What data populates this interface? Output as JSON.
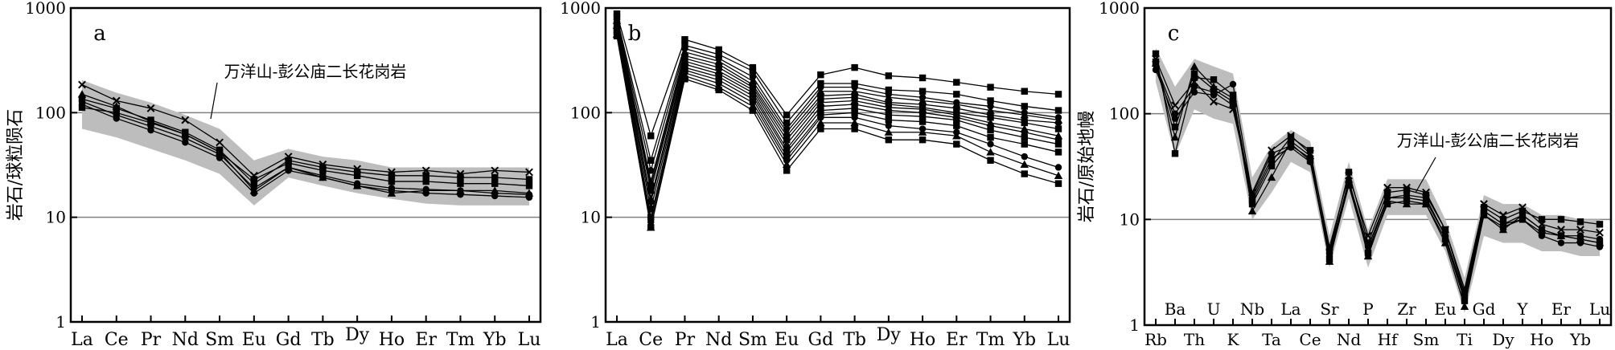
{
  "chart_data": [
    {
      "type": "line",
      "panel_label": "a",
      "ylabel": "岩石/球粒陨石",
      "yscale": "log",
      "ylim": [
        1,
        1000
      ],
      "yticks": [
        "1",
        "10",
        "100",
        "1000"
      ],
      "grid": "horizontal",
      "categories": [
        "La",
        "Ce",
        "Pr",
        "Nd",
        "Sm",
        "Eu",
        "Gd",
        "Tb",
        "Dy",
        "Ho",
        "Er",
        "Tm",
        "Yb",
        "Lu"
      ],
      "annotation": "万洋山-彭公庙二长花岗岩",
      "shaded_range": {
        "lower": [
          70,
          58,
          45,
          35,
          26,
          13,
          24,
          20,
          17,
          15,
          13.5,
          13,
          13,
          13
        ],
        "upper": [
          205,
          155,
          125,
          95,
          70,
          35,
          45,
          38,
          35,
          30,
          30,
          30,
          30,
          30
        ]
      },
      "series": [
        {
          "marker": "circle",
          "values": [
            120,
            88,
            68,
            52,
            37,
            17,
            28,
            24,
            20,
            18,
            17,
            16.5,
            16,
            15.5
          ]
        },
        {
          "marker": "circle",
          "values": [
            128,
            95,
            74,
            57,
            40,
            19,
            30,
            25,
            21,
            19,
            18.5,
            18,
            17,
            16.5
          ]
        },
        {
          "marker": "square",
          "values": [
            135,
            110,
            85,
            65,
            44,
            21,
            35,
            30,
            27,
            25,
            25,
            24,
            24,
            23
          ]
        },
        {
          "marker": "triangle",
          "values": [
            150,
            115,
            82,
            62,
            42,
            18,
            30,
            24,
            20,
            17,
            18,
            18,
            18,
            17
          ]
        },
        {
          "marker": "cross",
          "values": [
            185,
            130,
            110,
            85,
            52,
            25,
            38,
            32,
            29,
            27,
            28,
            26,
            28,
            27
          ]
        },
        {
          "marker": "square",
          "values": [
            112,
            100,
            80,
            62,
            42,
            23,
            33,
            28,
            25,
            22,
            22,
            21,
            21,
            20
          ]
        }
      ]
    },
    {
      "type": "line",
      "panel_label": "b",
      "yscale": "log",
      "ylim": [
        1,
        1000
      ],
      "yticks": [
        "1",
        "10",
        "100",
        "1000"
      ],
      "grid": "horizontal",
      "categories": [
        "La",
        "Ce",
        "Pr",
        "Nd",
        "Sm",
        "Eu",
        "Gd",
        "Tb",
        "Dy",
        "Ho",
        "Er",
        "Tm",
        "Yb",
        "Lu"
      ],
      "series": [
        {
          "marker": "square",
          "values": [
            880,
            60,
            500,
            400,
            270,
            95,
            230,
            270,
            225,
            215,
            195,
            175,
            160,
            150
          ]
        },
        {
          "marker": "square",
          "values": [
            820,
            35,
            440,
            360,
            250,
            80,
            190,
            190,
            165,
            160,
            150,
            130,
            115,
            105
          ]
        },
        {
          "marker": "circle",
          "values": [
            780,
            28,
            410,
            330,
            220,
            70,
            175,
            175,
            150,
            140,
            125,
            115,
            100,
            90
          ]
        },
        {
          "marker": "triangle",
          "values": [
            760,
            22,
            380,
            310,
            200,
            65,
            160,
            160,
            140,
            130,
            120,
            105,
            95,
            85
          ]
        },
        {
          "marker": "circle",
          "values": [
            720,
            20,
            350,
            290,
            185,
            60,
            145,
            150,
            125,
            120,
            110,
            95,
            85,
            80
          ]
        },
        {
          "marker": "square",
          "values": [
            700,
            18,
            330,
            270,
            175,
            55,
            135,
            140,
            120,
            112,
            100,
            90,
            80,
            70
          ]
        },
        {
          "marker": "triangle",
          "values": [
            680,
            15,
            310,
            250,
            165,
            50,
            125,
            130,
            112,
            108,
            95,
            80,
            70,
            60
          ]
        },
        {
          "marker": "circle",
          "values": [
            650,
            14,
            290,
            235,
            155,
            45,
            115,
            120,
            105,
            100,
            90,
            75,
            65,
            55
          ]
        },
        {
          "marker": "square",
          "values": [
            620,
            12,
            270,
            220,
            145,
            42,
            105,
            110,
            95,
            92,
            85,
            68,
            58,
            50
          ]
        },
        {
          "marker": "square",
          "values": [
            600,
            10,
            255,
            205,
            135,
            38,
            95,
            100,
            85,
            82,
            75,
            58,
            50,
            42
          ]
        },
        {
          "marker": "circle",
          "values": [
            580,
            9,
            240,
            190,
            125,
            35,
            90,
            90,
            75,
            70,
            65,
            50,
            38,
            30
          ]
        },
        {
          "marker": "triangle",
          "values": [
            560,
            8,
            225,
            175,
            115,
            32,
            80,
            80,
            65,
            65,
            60,
            42,
            32,
            25
          ]
        },
        {
          "marker": "square",
          "values": [
            540,
            8,
            210,
            165,
            105,
            28,
            70,
            70,
            55,
            55,
            50,
            35,
            26,
            21
          ]
        }
      ]
    },
    {
      "type": "line",
      "panel_label": "c",
      "ylabel": "岩石/原始地幔",
      "yscale": "log",
      "ylim": [
        1,
        1000
      ],
      "yticks": [
        "1",
        "10",
        "100",
        "1000"
      ],
      "grid": "horizontal",
      "categories_bottom": [
        "Rb",
        "Th",
        "K",
        "Ta",
        "Ce",
        "Nd",
        "Hf",
        "Sm",
        "Ti",
        "Dy",
        "Ho",
        "Yb"
      ],
      "categories_top": [
        "Ba",
        "U",
        "Nb",
        "La",
        "Sr",
        "P",
        "Zr",
        "Eu",
        "Gd",
        "Y",
        "Er",
        "Lu"
      ],
      "categories": [
        "Rb",
        "Ba",
        "Th",
        "U",
        "K",
        "Nb",
        "Ta",
        "La",
        "Ce",
        "Sr",
        "Nd",
        "P",
        "Hf",
        "Zr",
        "Sm",
        "Eu",
        "Ti",
        "Gd",
        "Dy",
        "Y",
        "Ho",
        "Er",
        "Yb",
        "Lu"
      ],
      "annotation": "万洋山-彭公庙二长花岗岩",
      "shaded_range": {
        "lower": [
          200,
          40,
          110,
          90,
          80,
          10,
          18,
          35,
          28,
          3.5,
          16,
          3.5,
          11,
          11,
          11,
          5,
          1.3,
          7,
          6,
          6,
          5,
          5,
          4.5,
          4.5
        ],
        "upper": [
          420,
          180,
          330,
          280,
          240,
          25,
          50,
          70,
          55,
          7,
          35,
          8,
          24,
          24,
          24,
          10,
          2.8,
          17,
          14,
          14,
          11,
          11,
          10,
          10
        ]
      },
      "series": [
        {
          "marker": "square",
          "values": [
            370,
            42,
            220,
            210,
            150,
            15,
            35,
            60,
            45,
            5,
            28,
            6,
            18,
            19,
            17,
            8,
            2,
            13,
            10,
            12,
            10,
            10,
            9.5,
            9
          ]
        },
        {
          "marker": "triangle",
          "values": [
            300,
            60,
            280,
            180,
            140,
            12,
            25,
            55,
            40,
            4,
            24,
            4.5,
            15,
            14,
            14,
            6,
            1.5,
            11,
            8,
            11,
            8,
            7,
            6.5,
            6
          ]
        },
        {
          "marker": "circle",
          "values": [
            260,
            90,
            160,
            150,
            190,
            17,
            42,
            50,
            38,
            4.5,
            22,
            5,
            16,
            17,
            16,
            7,
            1.8,
            12,
            9,
            10,
            7,
            6,
            6,
            5.5
          ]
        },
        {
          "marker": "cross",
          "values": [
            330,
            120,
            200,
            130,
            110,
            18,
            45,
            62,
            42,
            5.5,
            26,
            7,
            20,
            20,
            18,
            8,
            2.2,
            14,
            11,
            13,
            9,
            8,
            8,
            7.5
          ]
        },
        {
          "marker": "circle",
          "values": [
            290,
            100,
            180,
            160,
            120,
            16,
            38,
            48,
            35,
            4.8,
            23,
            5.5,
            16,
            16,
            15,
            7,
            1.9,
            12,
            9,
            11,
            8,
            7,
            7,
            6.5
          ]
        },
        {
          "marker": "square",
          "values": [
            310,
            75,
            240,
            170,
            130,
            14,
            32,
            52,
            36,
            4.2,
            21,
            4.8,
            14,
            15,
            14,
            6.5,
            1.7,
            11,
            8.5,
            10,
            7.5,
            7,
            6.5,
            6
          ]
        }
      ]
    }
  ]
}
